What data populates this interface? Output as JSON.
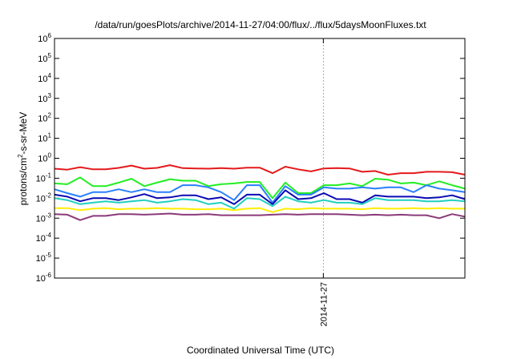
{
  "chart_data": {
    "type": "line",
    "title": "/data/run/goesPlots/archive/2014-11-27/04:00/flux/../flux/5daysMoonFluxes.txt",
    "xlabel": "Coordinated Universal Time (UTC)",
    "ylabel_base": "protons/cm",
    "ylabel_sup": "2",
    "ylabel_rest": "-s-sr-MeV",
    "x_tick_labels": [
      "2014-11-27"
    ],
    "y_scale": "log",
    "ylim": [
      1e-06,
      1000000.0
    ],
    "y_ticks": [
      {
        "base": "10",
        "exp": "-6"
      },
      {
        "base": "10",
        "exp": "-5"
      },
      {
        "base": "10",
        "exp": "-4"
      },
      {
        "base": "10",
        "exp": "-3"
      },
      {
        "base": "10",
        "exp": "-2"
      },
      {
        "base": "10",
        "exp": "-1"
      },
      {
        "base": "10",
        "exp": "0"
      },
      {
        "base": "10",
        "exp": "1"
      },
      {
        "base": "10",
        "exp": "2"
      },
      {
        "base": "10",
        "exp": "3"
      },
      {
        "base": "10",
        "exp": "4"
      },
      {
        "base": "10",
        "exp": "5"
      },
      {
        "base": "10",
        "exp": "6"
      }
    ],
    "grid_x": "dashed at 2014-11-27",
    "series": [
      {
        "color": "#e41a1c",
        "values": [
          0.3,
          0.27,
          0.36,
          0.28,
          0.28,
          0.33,
          0.43,
          0.3,
          0.33,
          0.45,
          0.32,
          0.31,
          0.3,
          0.32,
          0.3,
          0.34,
          0.34,
          0.18,
          0.38,
          0.28,
          0.22,
          0.31,
          0.32,
          0.31,
          0.21,
          0.23,
          0.15,
          0.18,
          0.18,
          0.21,
          0.21,
          0.2,
          0.15
        ]
      },
      {
        "color": "#22ee22",
        "values": [
          0.055,
          0.05,
          0.11,
          0.04,
          0.04,
          0.06,
          0.095,
          0.04,
          0.06,
          0.09,
          0.075,
          0.075,
          0.04,
          0.05,
          0.055,
          0.065,
          0.065,
          0.01,
          0.06,
          0.018,
          0.018,
          0.045,
          0.045,
          0.055,
          0.04,
          0.095,
          0.085,
          0.055,
          0.06,
          0.045,
          0.07,
          0.045,
          0.03
        ]
      },
      {
        "color": "#2a7fff",
        "values": [
          0.028,
          0.018,
          0.012,
          0.02,
          0.02,
          0.028,
          0.02,
          0.028,
          0.02,
          0.02,
          0.045,
          0.045,
          0.035,
          0.02,
          0.008,
          0.045,
          0.045,
          0.006,
          0.04,
          0.015,
          0.015,
          0.035,
          0.03,
          0.03,
          0.035,
          0.03,
          0.035,
          0.035,
          0.02,
          0.045,
          0.03,
          0.025,
          0.02
        ]
      },
      {
        "color": "#0a0ab4",
        "values": [
          0.015,
          0.012,
          0.007,
          0.01,
          0.01,
          0.008,
          0.011,
          0.016,
          0.01,
          0.011,
          0.014,
          0.014,
          0.009,
          0.011,
          0.005,
          0.015,
          0.015,
          0.005,
          0.025,
          0.009,
          0.01,
          0.018,
          0.009,
          0.009,
          0.006,
          0.014,
          0.012,
          0.012,
          0.012,
          0.01,
          0.011,
          0.014,
          0.009
        ]
      },
      {
        "color": "#20d0c0",
        "values": [
          0.01,
          0.008,
          0.005,
          0.006,
          0.007,
          0.006,
          0.007,
          0.008,
          0.006,
          0.007,
          0.009,
          0.008,
          0.005,
          0.006,
          0.003,
          0.01,
          0.009,
          0.004,
          0.012,
          0.007,
          0.006,
          0.008,
          0.006,
          0.006,
          0.005,
          0.01,
          0.008,
          0.008,
          0.008,
          0.007,
          0.007,
          0.008,
          0.007
        ]
      },
      {
        "color": "#ffee00",
        "values": [
          0.0032,
          0.0032,
          0.0025,
          0.003,
          0.0032,
          0.0028,
          0.003,
          0.003,
          0.0032,
          0.003,
          0.003,
          0.0028,
          0.0028,
          0.003,
          0.0025,
          0.003,
          0.0032,
          0.002,
          0.003,
          0.0028,
          0.0032,
          0.003,
          0.003,
          0.003,
          0.0028,
          0.0032,
          0.003,
          0.003,
          0.0032,
          0.003,
          0.0032,
          0.003,
          0.003
        ]
      },
      {
        "color": "#8b3a7a",
        "values": [
          0.0016,
          0.0015,
          0.0008,
          0.0013,
          0.0013,
          0.0016,
          0.0016,
          0.0015,
          0.0016,
          0.0017,
          0.0015,
          0.0015,
          0.0016,
          0.0014,
          0.0014,
          0.0014,
          0.0014,
          0.0015,
          0.0016,
          0.0015,
          0.0016,
          0.0016,
          0.0016,
          0.0015,
          0.0014,
          0.0015,
          0.0014,
          0.0015,
          0.0014,
          0.0014,
          0.001,
          0.0016,
          0.0012
        ]
      }
    ]
  }
}
